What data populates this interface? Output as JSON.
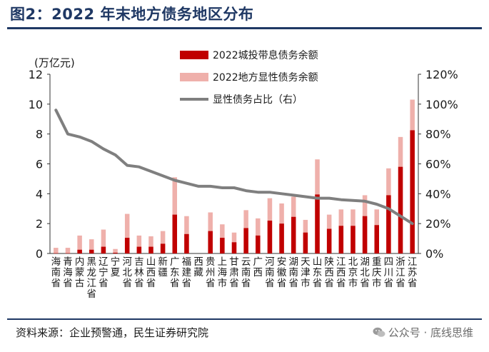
{
  "title": "图2：2022 年末地方债务地区分布",
  "source": "资料来源：企业预警通，民生证券研究院",
  "watermark": "公众号 · 底线思维",
  "colors": {
    "bar_city": "#c00000",
    "bar_explicit": "#efb0ab",
    "line": "#7f7f7f",
    "title": "#1f3864"
  },
  "chart_data": {
    "type": "bar",
    "stacked": true,
    "y_unit_label": "(万亿元)",
    "ylim": [
      0,
      12
    ],
    "yticks": [
      "0",
      "2",
      "4",
      "6",
      "8",
      "10",
      "12"
    ],
    "y2lim": [
      0,
      120
    ],
    "y2ticks": [
      "0%",
      "20%",
      "40%",
      "60%",
      "80%",
      "100%",
      "120%"
    ],
    "legend": [
      "2022城投带息债务余额",
      "2022地方显性债务余额",
      "显性债务占比（右）"
    ],
    "categories": [
      "海南省",
      "青海省",
      "内蒙古",
      "黑龙江省",
      "辽宁省",
      "宁夏",
      "河北省",
      "吉林省",
      "山西省",
      "新疆",
      "广东省",
      "福建省",
      "西藏",
      "贵州省",
      "上海市",
      "甘肃省",
      "云南省",
      "广西",
      "河南省",
      "安徽省",
      "湖南省",
      "天津市",
      "山东省",
      "陕西省",
      "江西省",
      "北京市",
      "湖北省",
      "重庆市",
      "四川省",
      "浙江省",
      "江苏省"
    ],
    "series": [
      {
        "name": "2022城投带息债务余额",
        "values": [
          0.02,
          0.02,
          0.25,
          0.25,
          0.45,
          0.05,
          1.05,
          0.45,
          0.45,
          0.65,
          2.6,
          1.3,
          0.0,
          1.5,
          1.05,
          0.75,
          1.7,
          1.2,
          2.2,
          2.0,
          2.45,
          1.4,
          3.95,
          1.65,
          1.85,
          1.85,
          2.5,
          1.9,
          3.9,
          5.8,
          8.25
        ]
      },
      {
        "name": "2022地方显性债务余额",
        "values": [
          0.38,
          0.38,
          1.2,
          0.95,
          1.6,
          0.3,
          2.65,
          1.2,
          1.15,
          1.5,
          5.1,
          2.5,
          0.0,
          2.75,
          1.95,
          1.4,
          2.9,
          2.35,
          3.7,
          3.35,
          3.8,
          2.25,
          6.3,
          2.6,
          2.95,
          2.95,
          3.9,
          2.95,
          5.7,
          7.8,
          10.3
        ]
      },
      {
        "name": "显性债务占比（右）",
        "values": [
          96,
          80,
          78,
          75,
          70,
          66,
          59,
          58,
          55,
          52,
          49,
          47,
          45,
          45,
          44,
          44,
          42,
          41,
          41,
          40,
          39,
          38,
          37,
          37,
          36,
          35.5,
          35,
          33,
          30,
          25,
          20
        ]
      }
    ]
  }
}
